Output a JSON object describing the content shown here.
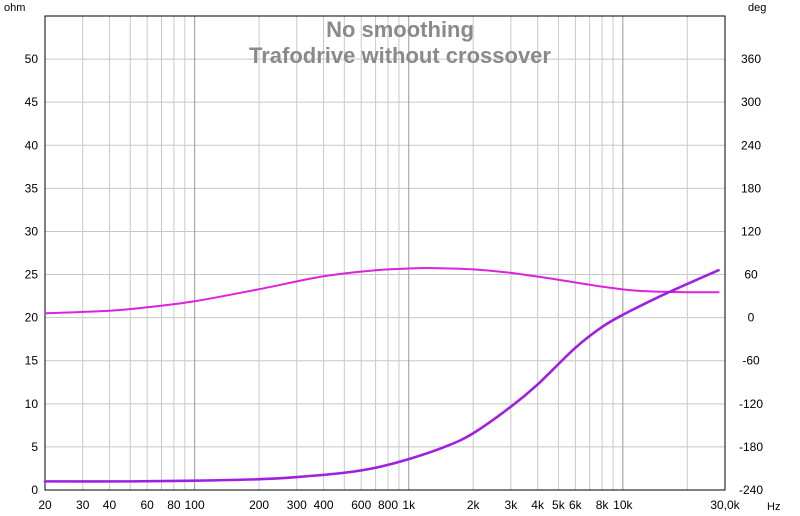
{
  "chart_data": {
    "type": "line",
    "title": "No smoothing",
    "subtitle": "Trafodrive without crossover",
    "x_scale": "log",
    "xlim": [
      20,
      30000
    ],
    "x_unit": "Hz",
    "x_ticks": [
      20,
      30,
      40,
      60,
      80,
      100,
      200,
      300,
      400,
      600,
      800,
      1000,
      2000,
      3000,
      4000,
      5000,
      6000,
      8000,
      10000,
      30000
    ],
    "x_tick_labels": [
      "20",
      "30",
      "40",
      "60",
      "80",
      "100",
      "200",
      "300",
      "400",
      "600",
      "800",
      "1k",
      "2k",
      "3k",
      "4k",
      "5k",
      "6k",
      "8k",
      "10k",
      "30,0k"
    ],
    "ylabel": "ohm",
    "ylim": [
      0,
      55
    ],
    "y_ticks": [
      0,
      5,
      10,
      15,
      20,
      25,
      30,
      35,
      40,
      45,
      50
    ],
    "y2label": "deg",
    "y2lim": [
      -240,
      420
    ],
    "y2_ticks": [
      -240,
      -180,
      -120,
      -60,
      0,
      60,
      120,
      180,
      240,
      300,
      360
    ],
    "grid": true,
    "series": [
      {
        "axis": "left",
        "color": "#dd22dd",
        "x": [
          20,
          40,
          60,
          100,
          200,
          400,
          700,
          1000,
          1300,
          2000,
          3000,
          5000,
          8000,
          12000,
          20000,
          28000
        ],
        "values": [
          20.5,
          20.8,
          21.2,
          21.9,
          23.3,
          24.8,
          25.5,
          25.7,
          25.75,
          25.6,
          25.2,
          24.4,
          23.6,
          23.1,
          22.95,
          22.95
        ]
      },
      {
        "axis": "right",
        "color": "#a020e0",
        "x": [
          20,
          50,
          100,
          200,
          300,
          500,
          700,
          1000,
          1500,
          2000,
          3000,
          4000,
          6000,
          8000,
          10000,
          15000,
          20000,
          28000
        ],
        "values": [
          -228,
          -228,
          -227,
          -225,
          -222,
          -216,
          -209,
          -197,
          -179,
          -161,
          -124,
          -93,
          -42,
          -13,
          4,
          30,
          47,
          66
        ]
      }
    ]
  }
}
